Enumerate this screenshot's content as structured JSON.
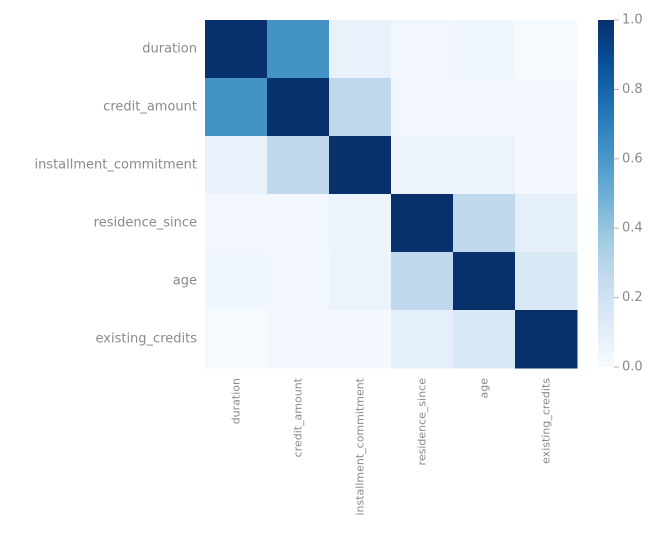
{
  "chart_data": {
    "type": "heatmap",
    "title": "",
    "xlabel": "",
    "ylabel": "",
    "rows": [
      "duration",
      "credit_amount",
      "installment_commitment",
      "residence_since",
      "age",
      "existing_credits"
    ],
    "columns": [
      "duration",
      "credit_amount",
      "installment_commitment",
      "residence_since",
      "age",
      "existing_credits"
    ],
    "values": [
      [
        1.0,
        0.62,
        0.07,
        0.03,
        0.04,
        0.01
      ],
      [
        0.62,
        1.0,
        0.27,
        0.03,
        0.03,
        0.02
      ],
      [
        0.07,
        0.27,
        1.0,
        0.05,
        0.06,
        0.02
      ],
      [
        0.03,
        0.03,
        0.05,
        1.0,
        0.27,
        0.09
      ],
      [
        0.04,
        0.03,
        0.06,
        0.27,
        1.0,
        0.15
      ],
      [
        0.01,
        0.02,
        0.02,
        0.09,
        0.15,
        1.0
      ]
    ],
    "colorbar": {
      "range": [
        0.0,
        1.0
      ],
      "ticks": [
        "0.0",
        "0.2",
        "0.4",
        "0.6",
        "0.8",
        "1.0"
      ],
      "colormap": "Blues"
    }
  }
}
